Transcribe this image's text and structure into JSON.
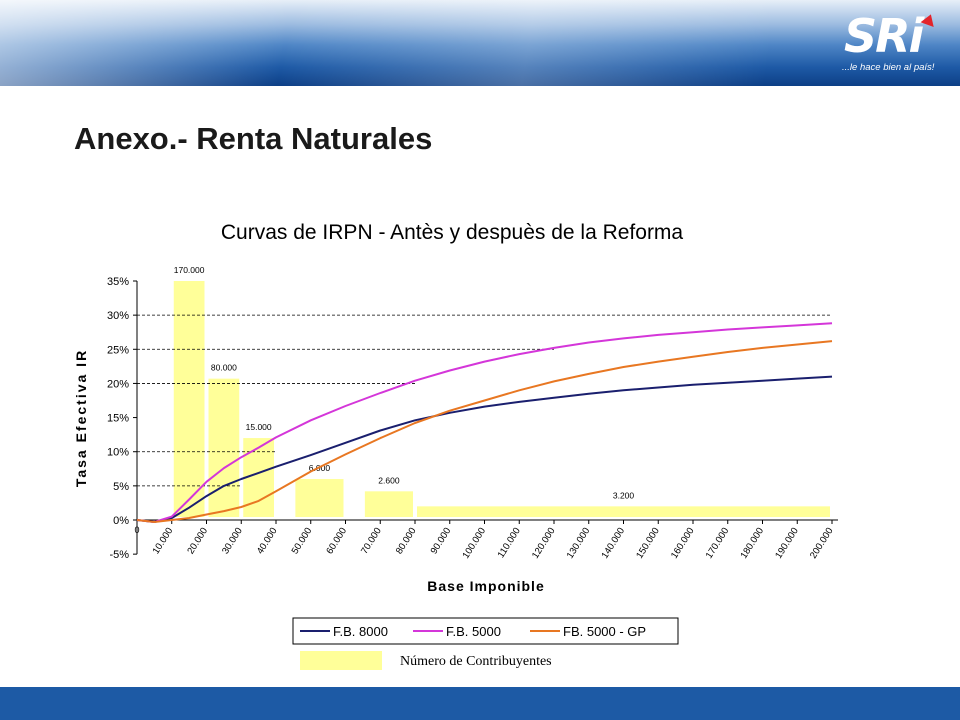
{
  "header": {
    "logo_text": "SRi",
    "logo_tagline": "...le hace bien al país!"
  },
  "slide": {
    "title": "Anexo.- Renta Naturales"
  },
  "chart_data": {
    "type": "line",
    "title": "Curvas de IRPN - Antès y despuès de la Reforma",
    "xlabel": "Base Imponible",
    "ylabel": "Tasa Efectiva IR",
    "ylim": [
      -5,
      35
    ],
    "y_ticks": [
      "-5%",
      "0%",
      "5%",
      "10%",
      "15%",
      "20%",
      "25%",
      "30%",
      "35%"
    ],
    "x_origin_label": "0",
    "x_ticks": [
      "10.000",
      "20.000",
      "30.000",
      "40.000",
      "50.000",
      "60.000",
      "70.000",
      "80.000",
      "90.000",
      "100.000",
      "110.000",
      "120.000",
      "130.000",
      "140.000",
      "150.000",
      "160.000",
      "170.000",
      "180.000",
      "190.000",
      "200.000"
    ],
    "x": [
      0,
      5000,
      10000,
      15000,
      20000,
      25000,
      30000,
      35000,
      40000,
      50000,
      60000,
      70000,
      80000,
      90000,
      100000,
      110000,
      120000,
      130000,
      140000,
      150000,
      160000,
      170000,
      180000,
      190000,
      200000
    ],
    "series": [
      {
        "name": "F.B. 8000",
        "color": "#1a1f6e",
        "values": [
          0,
          -0.3,
          0.3,
          1.8,
          3.5,
          5.0,
          6.0,
          6.9,
          7.8,
          9.5,
          11.3,
          13.1,
          14.6,
          15.7,
          16.6,
          17.3,
          17.9,
          18.5,
          19.0,
          19.4,
          19.8,
          20.1,
          20.4,
          20.7,
          21.0
        ]
      },
      {
        "name": "F.B. 5000",
        "color": "#d436d9",
        "values": [
          0,
          -0.3,
          0.5,
          3.0,
          5.6,
          7.6,
          9.2,
          10.6,
          12.1,
          14.6,
          16.7,
          18.6,
          20.4,
          21.9,
          23.2,
          24.3,
          25.2,
          26.0,
          26.6,
          27.1,
          27.5,
          27.9,
          28.2,
          28.5,
          28.8
        ]
      },
      {
        "name": "FB. 5000 - GP",
        "color": "#e87722",
        "values": [
          0,
          -0.3,
          0,
          0.3,
          0.8,
          1.3,
          1.9,
          2.8,
          4.2,
          7.1,
          9.6,
          12.0,
          14.2,
          16.0,
          17.5,
          19.0,
          20.3,
          21.4,
          22.4,
          23.2,
          23.9,
          24.6,
          25.2,
          25.7,
          26.2
        ]
      }
    ],
    "contributor_bars": [
      {
        "label": "170.000",
        "x_start": 10000,
        "x_end": 20000,
        "level": 35
      },
      {
        "label": "80.000",
        "x_start": 20000,
        "x_end": 30000,
        "level": 20.7
      },
      {
        "label": "15.000",
        "x_start": 30000,
        "x_end": 40000,
        "level": 12
      },
      {
        "label": "6.000",
        "x_start": 45000,
        "x_end": 60000,
        "level": 6
      },
      {
        "label": "2.600",
        "x_start": 65000,
        "x_end": 80000,
        "level": 4.2
      },
      {
        "label": "3.200",
        "x_start": 80000,
        "x_end": 200000,
        "level": 2
      }
    ],
    "dashed_reference_levels": [
      {
        "level": 30,
        "x_end": 200000
      },
      {
        "level": 25,
        "x_end": 120000
      },
      {
        "level": 20,
        "x_end": 80000
      },
      {
        "level": 10,
        "x_end": 40000
      },
      {
        "level": 5,
        "x_end": 30000
      }
    ],
    "bar_color": "#ffff99",
    "legend_position": "bottom",
    "bar_legend_label": "Número de Contribuyentes"
  }
}
